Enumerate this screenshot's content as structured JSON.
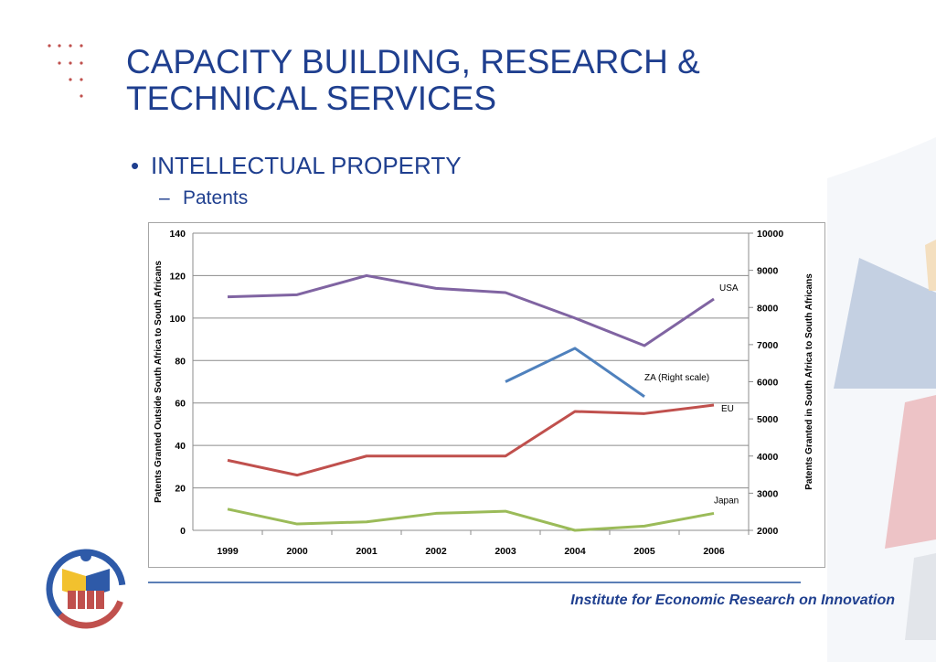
{
  "slide": {
    "title_line1": "CAPACITY BUILDING, RESEARCH &",
    "title_line2": "TECHNICAL SERVICES",
    "bullet": "INTELLECTUAL PROPERTY",
    "sub_bullet": "Patents",
    "footer": "Institute for Economic Research on Innovation"
  },
  "colors": {
    "title": "#1f3f8f",
    "usa": "#8064a2",
    "za": "#4f81bd",
    "eu": "#c0504d",
    "japan": "#9bbb59"
  },
  "chart_data": {
    "type": "line",
    "x": [
      "1999",
      "2000",
      "2001",
      "2002",
      "2003",
      "2004",
      "2005",
      "2006"
    ],
    "ylabel": "Patents Granted Outside South Africa to South Africans",
    "y2label": "Patents Granted in South Africa to South Africans",
    "ylim": [
      0,
      140
    ],
    "yticks": [
      0,
      20,
      40,
      60,
      80,
      100,
      120,
      140
    ],
    "y2lim": [
      2000,
      10000
    ],
    "y2ticks": [
      2000,
      3000,
      4000,
      5000,
      6000,
      7000,
      8000,
      9000,
      10000
    ],
    "grid": true,
    "series": [
      {
        "name": "USA",
        "axis": "left",
        "color": "#8064a2",
        "values": [
          110,
          111,
          120,
          114,
          112,
          100,
          87,
          109
        ]
      },
      {
        "name": "ZA (Right scale)",
        "axis": "right",
        "color": "#4f81bd",
        "values": [
          null,
          null,
          null,
          null,
          6000,
          6900,
          5600,
          null
        ]
      },
      {
        "name": "EU",
        "axis": "left",
        "color": "#c0504d",
        "values": [
          33,
          26,
          35,
          35,
          35,
          56,
          55,
          59
        ]
      },
      {
        "name": "Japan",
        "axis": "left",
        "color": "#9bbb59",
        "values": [
          10,
          3,
          4,
          8,
          9,
          0,
          2,
          8
        ]
      }
    ]
  }
}
